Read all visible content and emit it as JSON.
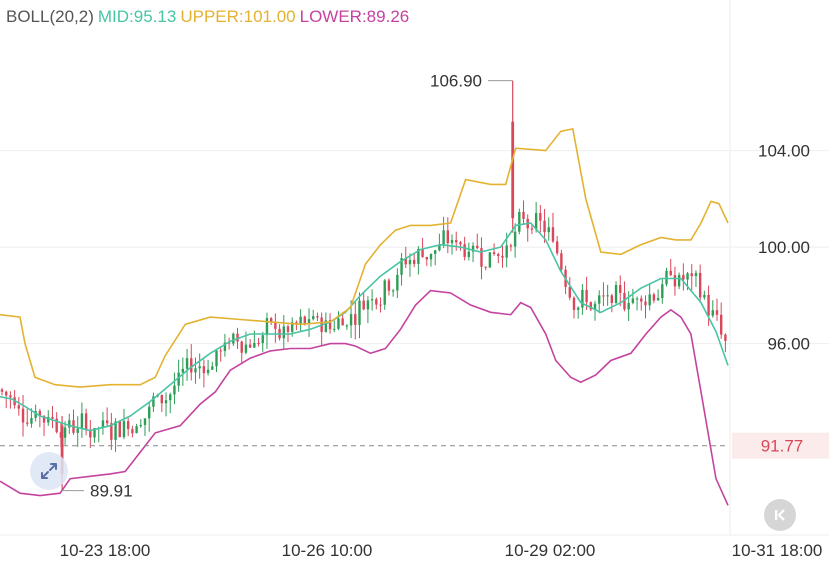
{
  "indicator": {
    "name": "BOLL(20,2)",
    "mid_label": "MID:95.13",
    "upper_label": "UPPER:101.00",
    "lower_label": "LOWER:89.26"
  },
  "colors": {
    "up": "#2e9e57",
    "down": "#d9475b",
    "mid": "#49c4a4",
    "upper": "#e3b231",
    "lower": "#c4439f",
    "grid": "#eeeeee",
    "text": "#333333",
    "last_price_bg": "#fbeceb",
    "last_price_text": "#d9475b"
  },
  "annotations": {
    "high_label": "106.90",
    "low_label": "89.91",
    "last_price_label": "91.77"
  },
  "controls": {
    "scroll_icon": "chevron-left-bar-icon",
    "zoom_icon": "expand-arrows-icon"
  },
  "chart_data": {
    "type": "candlestick",
    "title": "",
    "y_ticks": [
      "104.00",
      "100.00",
      "96.00"
    ],
    "x_ticks": [
      "10-23 18:00",
      "10-26 10:00",
      "10-29 02:00",
      "10-31 18:00"
    ],
    "ylim": [
      88.4,
      109.0
    ],
    "last_price": 91.77,
    "high": 106.9,
    "low": 89.91,
    "series": [
      {
        "name": "MID",
        "points": [
          [
            0,
            93.8
          ],
          [
            12,
            93.7
          ],
          [
            25,
            93.4
          ],
          [
            40,
            93.0
          ],
          [
            55,
            92.8
          ],
          [
            70,
            92.6
          ],
          [
            90,
            92.4
          ],
          [
            110,
            92.6
          ],
          [
            130,
            93.0
          ],
          [
            150,
            93.6
          ],
          [
            170,
            94.3
          ],
          [
            190,
            95.0
          ],
          [
            210,
            95.6
          ],
          [
            230,
            96.1
          ],
          [
            250,
            96.4
          ],
          [
            270,
            96.4
          ],
          [
            290,
            96.4
          ],
          [
            310,
            96.6
          ],
          [
            330,
            96.9
          ],
          [
            345,
            97.3
          ],
          [
            360,
            98.0
          ],
          [
            380,
            98.8
          ],
          [
            400,
            99.4
          ],
          [
            420,
            99.9
          ],
          [
            440,
            100.1
          ],
          [
            460,
            100.0
          ],
          [
            480,
            99.8
          ],
          [
            500,
            100.0
          ],
          [
            515,
            100.9
          ],
          [
            530,
            101.0
          ],
          [
            545,
            100.3
          ],
          [
            560,
            99.0
          ],
          [
            580,
            97.7
          ],
          [
            600,
            97.3
          ],
          [
            620,
            97.7
          ],
          [
            640,
            98.3
          ],
          [
            660,
            98.7
          ],
          [
            680,
            98.7
          ],
          [
            700,
            97.7
          ],
          [
            715,
            96.5
          ],
          [
            727,
            95.1
          ]
        ]
      },
      {
        "name": "UPPER",
        "points": [
          [
            0,
            97.2
          ],
          [
            20,
            97.1
          ],
          [
            25,
            96.0
          ],
          [
            35,
            94.6
          ],
          [
            55,
            94.3
          ],
          [
            80,
            94.2
          ],
          [
            110,
            94.3
          ],
          [
            140,
            94.3
          ],
          [
            155,
            94.6
          ],
          [
            165,
            95.5
          ],
          [
            185,
            96.8
          ],
          [
            210,
            97.1
          ],
          [
            240,
            97.0
          ],
          [
            270,
            96.9
          ],
          [
            300,
            96.8
          ],
          [
            330,
            96.9
          ],
          [
            350,
            97.5
          ],
          [
            365,
            99.3
          ],
          [
            380,
            100.1
          ],
          [
            395,
            100.7
          ],
          [
            410,
            100.9
          ],
          [
            430,
            100.9
          ],
          [
            450,
            101.0
          ],
          [
            465,
            102.8
          ],
          [
            490,
            102.6
          ],
          [
            505,
            102.6
          ],
          [
            515,
            104.1
          ],
          [
            545,
            104.0
          ],
          [
            560,
            104.8
          ],
          [
            572,
            104.9
          ],
          [
            585,
            102.0
          ],
          [
            600,
            99.8
          ],
          [
            620,
            99.7
          ],
          [
            640,
            100.1
          ],
          [
            660,
            100.4
          ],
          [
            675,
            100.3
          ],
          [
            690,
            100.3
          ],
          [
            700,
            101.0
          ],
          [
            710,
            101.9
          ],
          [
            718,
            101.8
          ],
          [
            727,
            101.0
          ]
        ]
      },
      {
        "name": "LOWER",
        "points": [
          [
            0,
            90.3
          ],
          [
            20,
            89.8
          ],
          [
            40,
            89.7
          ],
          [
            60,
            89.8
          ],
          [
            70,
            90.4
          ],
          [
            90,
            90.5
          ],
          [
            110,
            90.6
          ],
          [
            125,
            90.7
          ],
          [
            140,
            91.5
          ],
          [
            155,
            92.3
          ],
          [
            180,
            92.6
          ],
          [
            200,
            93.5
          ],
          [
            215,
            94.0
          ],
          [
            230,
            94.9
          ],
          [
            250,
            95.4
          ],
          [
            270,
            95.7
          ],
          [
            290,
            95.8
          ],
          [
            310,
            95.8
          ],
          [
            330,
            96.0
          ],
          [
            345,
            96.0
          ],
          [
            355,
            95.9
          ],
          [
            370,
            95.6
          ],
          [
            385,
            95.8
          ],
          [
            400,
            96.6
          ],
          [
            415,
            97.6
          ],
          [
            430,
            98.2
          ],
          [
            450,
            98.1
          ],
          [
            470,
            97.6
          ],
          [
            490,
            97.3
          ],
          [
            510,
            97.2
          ],
          [
            520,
            97.7
          ],
          [
            530,
            97.5
          ],
          [
            545,
            96.4
          ],
          [
            555,
            95.3
          ],
          [
            570,
            94.6
          ],
          [
            580,
            94.4
          ],
          [
            595,
            94.7
          ],
          [
            610,
            95.3
          ],
          [
            630,
            95.6
          ],
          [
            645,
            96.4
          ],
          [
            660,
            97.1
          ],
          [
            670,
            97.4
          ],
          [
            680,
            97.1
          ],
          [
            690,
            96.4
          ],
          [
            700,
            94.0
          ],
          [
            715,
            90.4
          ],
          [
            727,
            89.3
          ]
        ]
      }
    ]
  }
}
